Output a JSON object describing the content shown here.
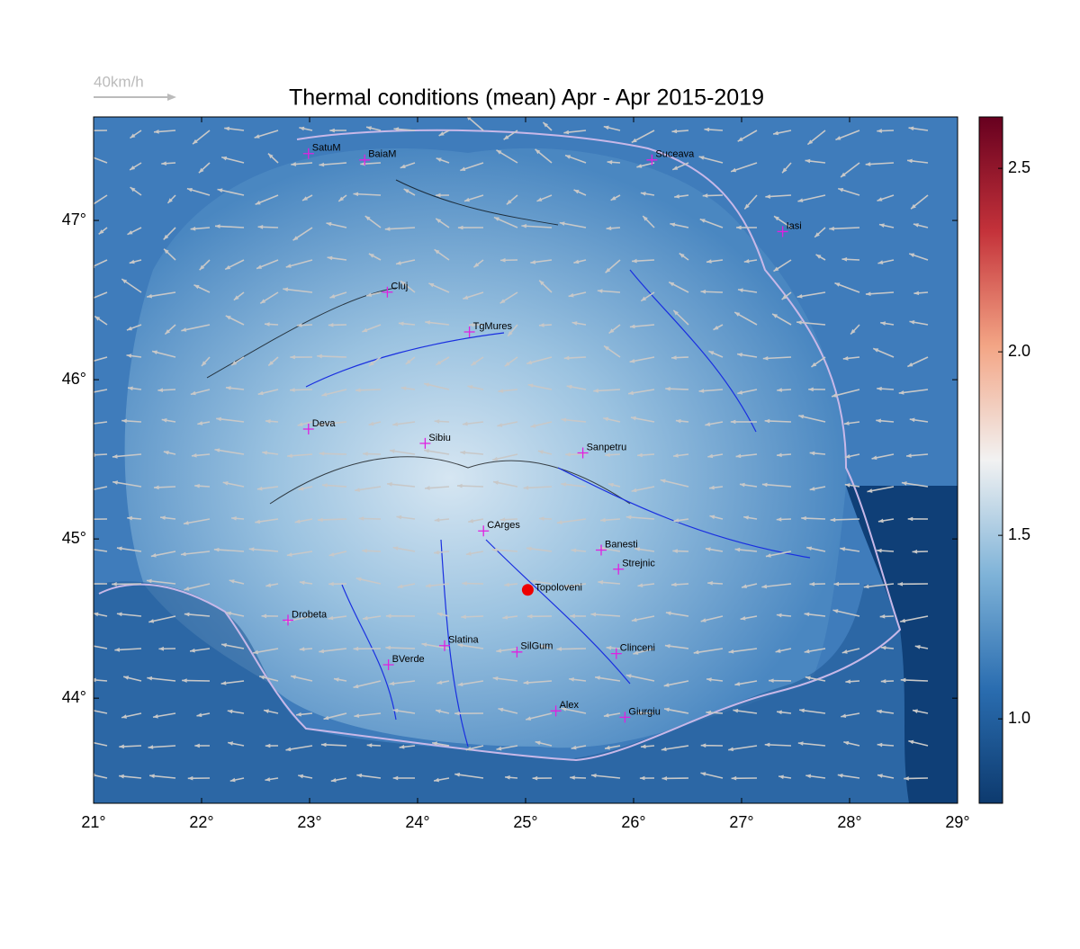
{
  "title": "Thermal conditions (mean) Apr - Apr  2015-2019",
  "wind_legend": "40km/h",
  "xlim": [
    21,
    29
  ],
  "ylim": [
    43.34,
    47.65
  ],
  "xticks": [
    {
      "value": 21,
      "label": "21°"
    },
    {
      "value": 22,
      "label": "22°"
    },
    {
      "value": 23,
      "label": "23°"
    },
    {
      "value": 24,
      "label": "24°"
    },
    {
      "value": 25,
      "label": "25°"
    },
    {
      "value": 26,
      "label": "26°"
    },
    {
      "value": 27,
      "label": "27°"
    },
    {
      "value": 28,
      "label": "28°"
    },
    {
      "value": 29,
      "label": "29°"
    }
  ],
  "yticks": [
    {
      "value": 44,
      "label": "44°"
    },
    {
      "value": 45,
      "label": "45°"
    },
    {
      "value": 46,
      "label": "46°"
    },
    {
      "value": 47,
      "label": "47°"
    }
  ],
  "colorbar": {
    "lim": [
      0.77,
      2.64
    ],
    "ticks": [
      {
        "value": 1,
        "label": "1.0"
      },
      {
        "value": 1.5,
        "label": "1.5"
      },
      {
        "value": 2,
        "label": "2.0"
      },
      {
        "value": 2.5,
        "label": "2.5"
      }
    ],
    "colors": [
      "#0d3a6e",
      "#2a6db0",
      "#7fb3d8",
      "#f2f2f2",
      "#f3a585",
      "#c4323a",
      "#67001f"
    ]
  },
  "highlight": {
    "label": "Topoloveni",
    "lon": 25.02,
    "lat": 44.68,
    "color": "#ee0000"
  },
  "cities": [
    {
      "label": "SatuM",
      "lon": 22.99,
      "lat": 47.42
    },
    {
      "label": "BaiaM",
      "lon": 23.51,
      "lat": 47.38
    },
    {
      "label": "Suceava",
      "lon": 26.17,
      "lat": 47.38
    },
    {
      "label": "Iasi",
      "lon": 27.38,
      "lat": 46.93
    },
    {
      "label": "Cluj",
      "lon": 23.72,
      "lat": 46.55
    },
    {
      "label": "TgMures",
      "lon": 24.48,
      "lat": 46.3
    },
    {
      "label": "Deva",
      "lon": 22.99,
      "lat": 45.69
    },
    {
      "label": "Sibiu",
      "lon": 24.07,
      "lat": 45.6
    },
    {
      "label": "Sanpetru",
      "lon": 25.53,
      "lat": 45.54
    },
    {
      "label": "CArges",
      "lon": 24.61,
      "lat": 45.05
    },
    {
      "label": "Banesti",
      "lon": 25.7,
      "lat": 44.93
    },
    {
      "label": "Strejnic",
      "lon": 25.86,
      "lat": 44.81
    },
    {
      "label": "Drobeta",
      "lon": 22.8,
      "lat": 44.49
    },
    {
      "label": "Slatina",
      "lon": 24.25,
      "lat": 44.33
    },
    {
      "label": "SilGum",
      "lon": 24.92,
      "lat": 44.29
    },
    {
      "label": "Clinceni",
      "lon": 25.84,
      "lat": 44.28
    },
    {
      "label": "BVerde",
      "lon": 23.73,
      "lat": 44.21
    },
    {
      "label": "Alex",
      "lon": 25.28,
      "lat": 43.92
    },
    {
      "label": "Giurgiu",
      "lon": 25.92,
      "lat": 43.88
    }
  ]
}
